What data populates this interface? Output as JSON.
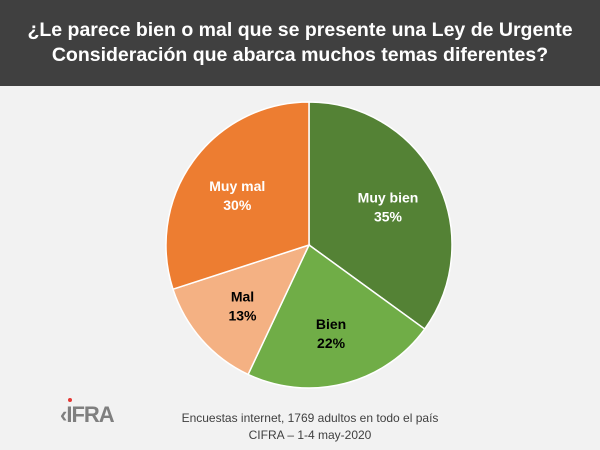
{
  "chart_data": {
    "type": "pie",
    "title": [
      "¿Le parece bien o mal que se presente una Ley de Urgente",
      "Consideración que abarca muchos temas diferentes?"
    ],
    "categories": [
      "Muy bien",
      "Bien",
      "Mal",
      "Muy mal"
    ],
    "values": [
      35,
      22,
      13,
      30
    ],
    "labels": [
      "35%",
      "22%",
      "13%",
      "30%"
    ],
    "colors": [
      "#548235",
      "#70ad47",
      "#f4b183",
      "#ed7d31"
    ],
    "label_colors": [
      "#ffffff",
      "#000000",
      "#000000",
      "#ffffff"
    ],
    "start": "top",
    "direction": "clockwise"
  },
  "footer": {
    "line1": "Encuestas internet, 1769 adultos en todo el país",
    "line2": "CIFRA – 1-4 may-2020"
  },
  "logo": {
    "text": "CIFRA"
  }
}
